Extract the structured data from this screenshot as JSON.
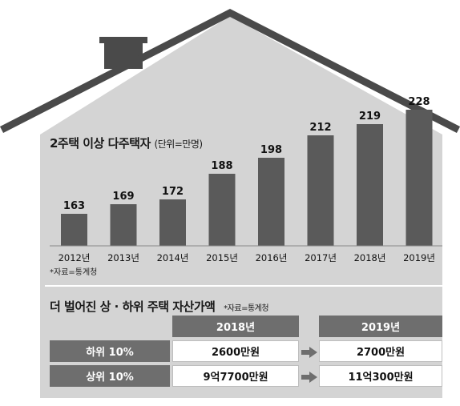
{
  "chart_data": {
    "type": "bar",
    "title": "2주택 이상 다주택자",
    "unit_note": "(단위=만명)",
    "categories": [
      "2012년",
      "2013년",
      "2014년",
      "2015년",
      "2016년",
      "2017년",
      "2018년",
      "2019년"
    ],
    "values": [
      163,
      169,
      172,
      188,
      198,
      212,
      219,
      228
    ],
    "source": "*자료=통계청",
    "colors": {
      "bar": "#5a5a5a",
      "house": "#d4d4d4",
      "roof": "#4a4a4a"
    }
  },
  "comparison": {
    "title": "더 벌어진 상 · 하위 주택 자산가액",
    "source": "*자료=통계청",
    "years": [
      "2018년",
      "2019년"
    ],
    "rows": [
      {
        "label": "하위 10%",
        "v2018": "2600만원",
        "v2019": "2700만원"
      },
      {
        "label": "상위 10%",
        "v2018": "9억7700만원",
        "v2019": "11억300만원"
      }
    ]
  }
}
